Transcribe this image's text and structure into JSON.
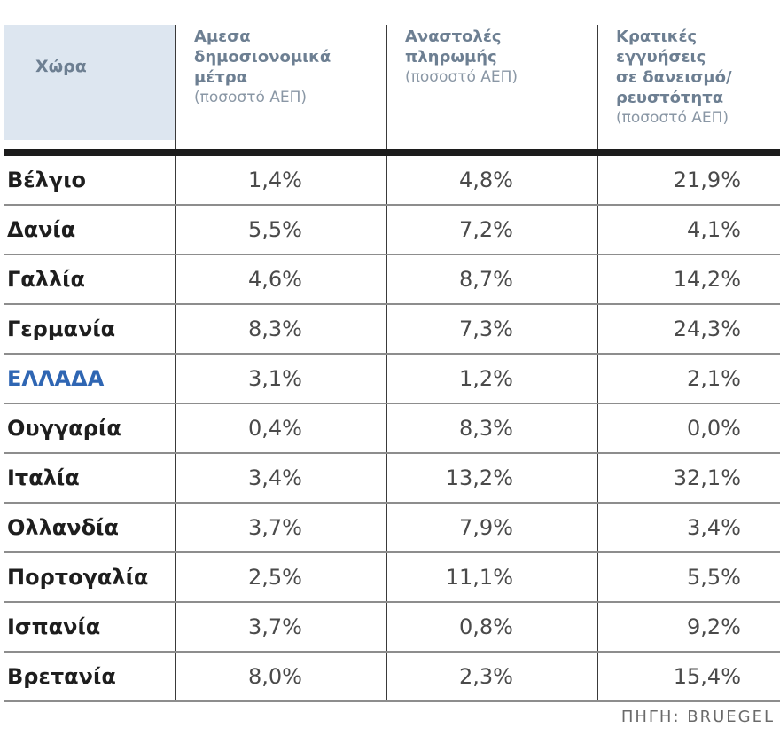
{
  "chart_data": {
    "type": "table",
    "columns": [
      {
        "title": "Χώρα",
        "unit": ""
      },
      {
        "title": "Αμεσα\nδημοσιονομικά\nμέτρα",
        "unit": "(ποσοστό ΑΕΠ)"
      },
      {
        "title": "Αναστολές\nπληρωμής",
        "unit": "(ποσοστό ΑΕΠ)"
      },
      {
        "title": "Κρατικές\nεγγυήσεις\nσε δανεισμό/\nρευστότητα",
        "unit": "(ποσοστό ΑΕΠ)"
      }
    ],
    "rows": [
      {
        "country": "Βέλγιο",
        "values": [
          "1,4%",
          "4,8%",
          "21,9%"
        ]
      },
      {
        "country": "Δανία",
        "values": [
          "5,5%",
          "7,2%",
          "4,1%"
        ]
      },
      {
        "country": "Γαλλία",
        "values": [
          "4,6%",
          "8,7%",
          "14,2%"
        ]
      },
      {
        "country": "Γερμανία",
        "values": [
          "8,3%",
          "7,3%",
          "24,3%"
        ]
      },
      {
        "country": "ΕΛΛΑΔΑ",
        "values": [
          "3,1%",
          "1,2%",
          "2,1%"
        ],
        "highlight": true
      },
      {
        "country": "Ουγγαρία",
        "values": [
          "0,4%",
          "8,3%",
          "0,0%"
        ]
      },
      {
        "country": "Ιταλία",
        "values": [
          "3,4%",
          "13,2%",
          "32,1%"
        ]
      },
      {
        "country": "Ολλανδία",
        "values": [
          "3,7%",
          "7,9%",
          "3,4%"
        ]
      },
      {
        "country": "Πορτογαλία",
        "values": [
          "2,5%",
          "11,1%",
          "5,5%"
        ]
      },
      {
        "country": "Ισπανία",
        "values": [
          "3,7%",
          "0,8%",
          "9,2%"
        ]
      },
      {
        "country": "Βρετανία",
        "values": [
          "8,0%",
          "2,3%",
          "15,4%"
        ]
      }
    ],
    "source": "ΠΗΓΗ: BRUEGEL",
    "colors": {
      "header_bg": "#dde6f0",
      "header_text": "#6d7f92",
      "highlight": "#2f66b3",
      "value_text": "#4a4a4a"
    }
  }
}
